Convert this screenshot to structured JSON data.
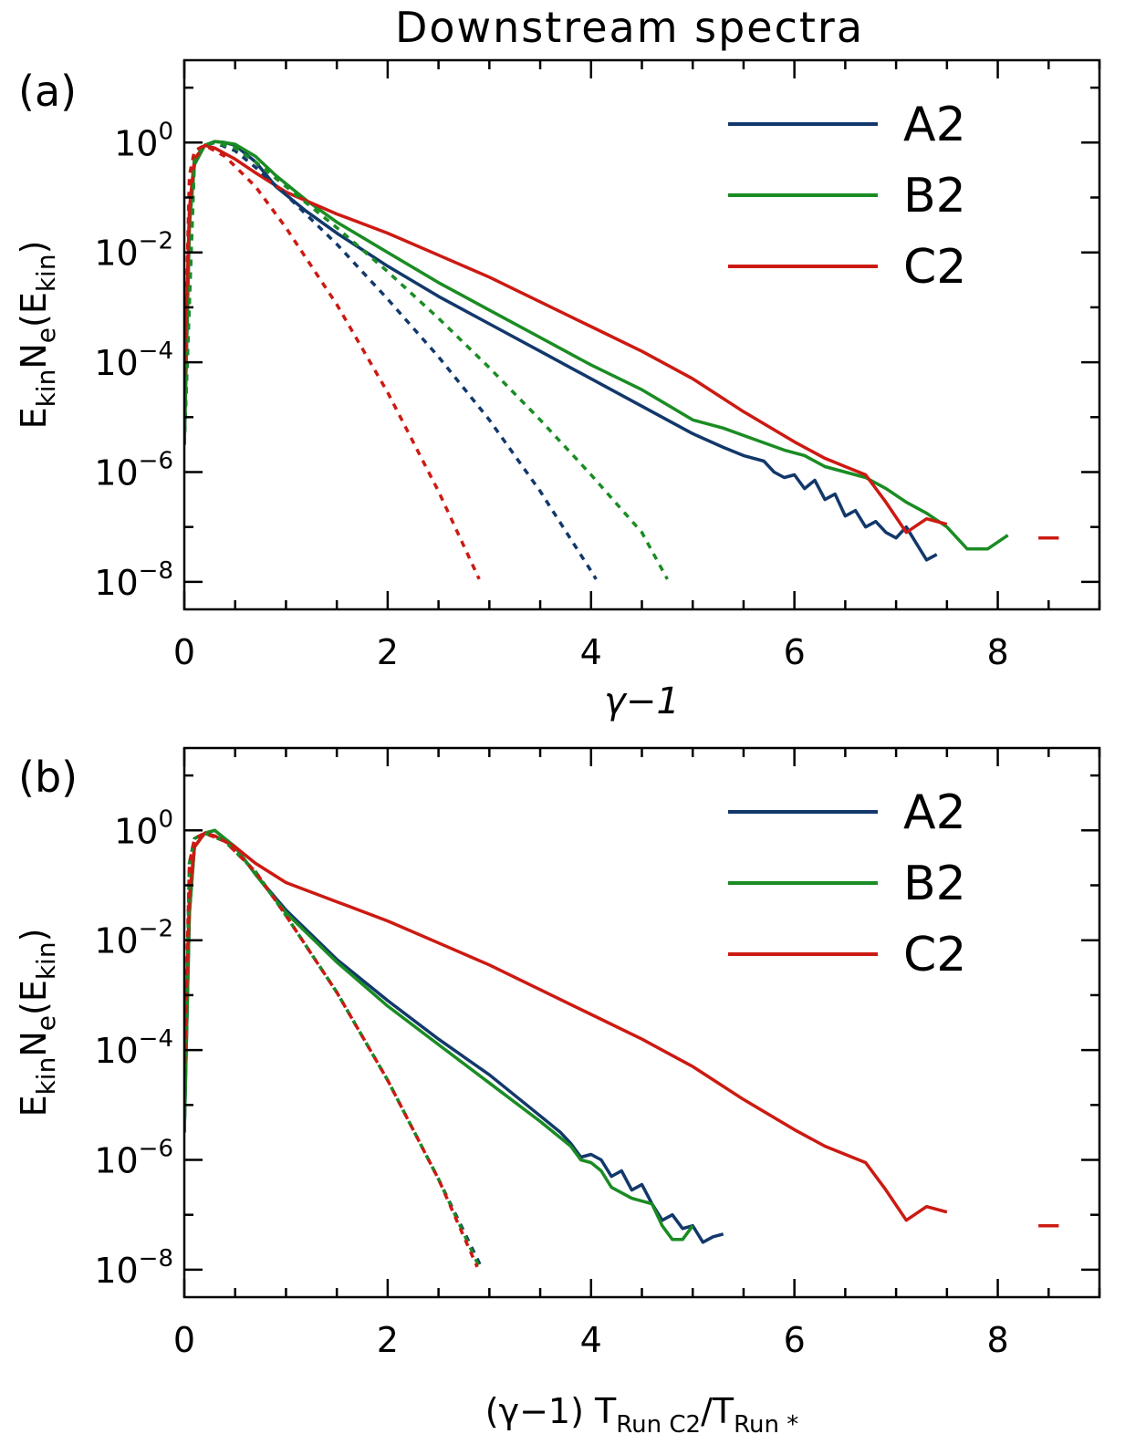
{
  "title": "Downstream spectra",
  "colors": {
    "A2": "#12386b",
    "B2": "#1a8c23",
    "C2": "#cc1a12"
  },
  "chart_data": [
    {
      "type": "line",
      "panel_label": "(a)",
      "xlabel": "γ−1",
      "ylabel": {
        "base": "E",
        "sub1": "kin",
        "mid": "N",
        "sub2": "e",
        "open": "(E",
        "sub3": "kin",
        "close": ")"
      },
      "xlim": [
        0,
        9
      ],
      "ylim": [
        -8.5,
        1.5
      ],
      "y_scale": "log10",
      "x_ticks": [
        0,
        2,
        4,
        6,
        8
      ],
      "y_ticks": [
        {
          "base": "10",
          "exp": "0"
        },
        {
          "base": "10",
          "exp": "−2"
        },
        {
          "base": "10",
          "exp": "−4"
        },
        {
          "base": "10",
          "exp": "−6"
        },
        {
          "base": "10",
          "exp": "−8"
        }
      ],
      "y_tick_values": [
        0,
        -2,
        -4,
        -6,
        -8
      ],
      "legend": [
        "A2",
        "B2",
        "C2"
      ],
      "legend_position": "top-right",
      "series": [
        {
          "name": "A2",
          "style": "solid",
          "x": [
            0,
            0.05,
            0.1,
            0.2,
            0.3,
            0.4,
            0.5,
            0.7,
            0.9,
            1.2,
            1.5,
            2,
            2.5,
            3,
            3.5,
            4,
            4.5,
            5,
            5.3,
            5.5,
            5.7,
            5.8,
            5.9,
            6,
            6.1,
            6.2,
            6.3,
            6.4,
            6.5,
            6.6,
            6.7,
            6.8,
            6.9,
            7,
            7.1,
            7.2,
            7.3,
            7.4
          ],
          "logy": [
            -5.5,
            -1.5,
            -0.4,
            -0.05,
            0.02,
            0.0,
            -0.05,
            -0.35,
            -0.8,
            -1.25,
            -1.65,
            -2.25,
            -2.8,
            -3.3,
            -3.8,
            -4.3,
            -4.8,
            -5.3,
            -5.55,
            -5.7,
            -5.8,
            -6.0,
            -6.1,
            -6.05,
            -6.3,
            -6.15,
            -6.5,
            -6.4,
            -6.8,
            -6.7,
            -7.0,
            -6.9,
            -7.1,
            -7.2,
            -7.0,
            -7.3,
            -7.6,
            -7.5
          ]
        },
        {
          "name": "B2",
          "style": "solid",
          "x": [
            0,
            0.05,
            0.1,
            0.2,
            0.3,
            0.4,
            0.5,
            0.7,
            0.9,
            1.2,
            1.5,
            2,
            2.5,
            3,
            3.5,
            4,
            4.5,
            5,
            5.3,
            5.6,
            5.9,
            6.1,
            6.3,
            6.5,
            6.7,
            6.9,
            7.1,
            7.3,
            7.5,
            7.7,
            7.9,
            8.1
          ],
          "logy": [
            -5.5,
            -1.5,
            -0.4,
            -0.05,
            0.02,
            0.0,
            -0.03,
            -0.25,
            -0.6,
            -1.05,
            -1.45,
            -2.0,
            -2.55,
            -3.05,
            -3.55,
            -4.05,
            -4.5,
            -5.05,
            -5.2,
            -5.4,
            -5.6,
            -5.7,
            -5.9,
            -6.0,
            -6.1,
            -6.3,
            -6.55,
            -6.75,
            -7.0,
            -7.4,
            -7.4,
            -7.15
          ]
        },
        {
          "name": "C2",
          "style": "solid",
          "x": [
            0,
            0.05,
            0.1,
            0.2,
            0.3,
            0.5,
            0.7,
            1.0,
            1.5,
            2.0,
            2.5,
            3.0,
            3.5,
            4.0,
            4.5,
            5.0,
            5.5,
            6.0,
            6.3,
            6.5,
            6.7,
            6.9,
            7.1,
            7.3,
            7.5
          ],
          "logy": [
            -4.5,
            -1.2,
            -0.3,
            -0.05,
            -0.1,
            -0.3,
            -0.55,
            -0.9,
            -1.3,
            -1.65,
            -2.05,
            -2.45,
            -2.9,
            -3.35,
            -3.8,
            -4.3,
            -4.9,
            -5.45,
            -5.75,
            -5.9,
            -6.05,
            -6.55,
            -7.1,
            -6.85,
            -6.95
          ]
        },
        {
          "name": "C2",
          "style": "solid",
          "x": [
            8.4,
            8.6
          ],
          "logy": [
            -7.2,
            -7.2
          ]
        },
        {
          "name": "A2",
          "style": "dotted",
          "x": [
            0,
            0.1,
            0.2,
            0.3,
            0.5,
            0.7,
            1.0,
            1.5,
            2,
            2.5,
            3,
            3.5,
            4,
            4.05
          ],
          "logy": [
            -5.5,
            -0.3,
            -0.05,
            0.0,
            -0.15,
            -0.45,
            -0.95,
            -1.85,
            -2.85,
            -3.9,
            -5.05,
            -6.35,
            -7.8,
            -7.95
          ]
        },
        {
          "name": "B2",
          "style": "dotted",
          "x": [
            0,
            0.1,
            0.2,
            0.3,
            0.5,
            0.7,
            1.0,
            1.5,
            2,
            2.5,
            3,
            3.5,
            4,
            4.5,
            4.75
          ],
          "logy": [
            -5.5,
            -0.3,
            -0.05,
            0.0,
            -0.1,
            -0.35,
            -0.8,
            -1.55,
            -2.35,
            -3.2,
            -4.1,
            -5.05,
            -6.05,
            -7.1,
            -7.95
          ]
        },
        {
          "name": "C2",
          "style": "dotted",
          "x": [
            0,
            0.05,
            0.1,
            0.2,
            0.4,
            0.7,
            1.0,
            1.5,
            2,
            2.5,
            2.9
          ],
          "logy": [
            -4.5,
            -0.6,
            -0.15,
            -0.05,
            -0.25,
            -0.8,
            -1.55,
            -2.95,
            -4.55,
            -6.35,
            -7.95
          ]
        }
      ]
    },
    {
      "type": "line",
      "panel_label": "(b)",
      "xlabel": "(γ−1)  T",
      "xlabel_sub1": "Run C2",
      "xlabel_mid": "/T",
      "xlabel_sub2": "Run *",
      "ylabel": {
        "base": "E",
        "sub1": "kin",
        "mid": "N",
        "sub2": "e",
        "open": "(E",
        "sub3": "kin",
        "close": ")"
      },
      "xlim": [
        0,
        9
      ],
      "ylim": [
        -8.5,
        1.5
      ],
      "y_scale": "log10",
      "x_ticks": [
        0,
        2,
        4,
        6,
        8
      ],
      "y_ticks": [
        {
          "base": "10",
          "exp": "0"
        },
        {
          "base": "10",
          "exp": "−2"
        },
        {
          "base": "10",
          "exp": "−4"
        },
        {
          "base": "10",
          "exp": "−6"
        },
        {
          "base": "10",
          "exp": "−8"
        }
      ],
      "y_tick_values": [
        0,
        -2,
        -4,
        -6,
        -8
      ],
      "legend": [
        "A2",
        "B2",
        "C2"
      ],
      "legend_position": "top-right",
      "series": [
        {
          "name": "A2",
          "style": "solid",
          "x": [
            0,
            0.05,
            0.1,
            0.2,
            0.3,
            0.5,
            0.7,
            1.0,
            1.5,
            2,
            2.5,
            3,
            3.5,
            3.7,
            3.8,
            3.9,
            4.0,
            4.1,
            4.2,
            4.3,
            4.4,
            4.5,
            4.6,
            4.7,
            4.8,
            4.9,
            5.0,
            5.1,
            5.2,
            5.3
          ],
          "logy": [
            -5.5,
            -1.5,
            -0.3,
            -0.05,
            0.0,
            -0.3,
            -0.8,
            -1.45,
            -2.35,
            -3.1,
            -3.8,
            -4.45,
            -5.2,
            -5.5,
            -5.7,
            -5.95,
            -5.9,
            -6.0,
            -6.3,
            -6.2,
            -6.55,
            -6.45,
            -6.8,
            -7.1,
            -7.0,
            -7.25,
            -7.2,
            -7.5,
            -7.4,
            -7.35
          ]
        },
        {
          "name": "B2",
          "style": "solid",
          "x": [
            0,
            0.05,
            0.1,
            0.2,
            0.3,
            0.5,
            0.7,
            1.0,
            1.5,
            2,
            2.5,
            3,
            3.5,
            3.7,
            3.8,
            3.9,
            4.0,
            4.1,
            4.2,
            4.4,
            4.6,
            4.7,
            4.8,
            4.9,
            5.0
          ],
          "logy": [
            -5.5,
            -1.5,
            -0.3,
            -0.05,
            0.0,
            -0.3,
            -0.8,
            -1.5,
            -2.4,
            -3.2,
            -3.9,
            -4.6,
            -5.3,
            -5.6,
            -5.75,
            -6.0,
            -6.05,
            -6.2,
            -6.5,
            -6.7,
            -6.8,
            -7.2,
            -7.45,
            -7.45,
            -7.2
          ]
        },
        {
          "name": "C2",
          "style": "solid",
          "x": [
            0,
            0.05,
            0.1,
            0.2,
            0.3,
            0.5,
            0.7,
            1.0,
            1.5,
            2.0,
            2.5,
            3.0,
            3.5,
            4.0,
            4.5,
            5.0,
            5.5,
            6.0,
            6.3,
            6.5,
            6.7,
            6.9,
            7.1,
            7.3,
            7.5
          ],
          "logy": [
            -4.5,
            -1.2,
            -0.3,
            -0.05,
            -0.1,
            -0.3,
            -0.6,
            -0.95,
            -1.3,
            -1.65,
            -2.05,
            -2.45,
            -2.9,
            -3.35,
            -3.8,
            -4.3,
            -4.9,
            -5.45,
            -5.75,
            -5.9,
            -6.05,
            -6.55,
            -7.1,
            -6.85,
            -6.95
          ]
        },
        {
          "name": "C2",
          "style": "solid",
          "x": [
            8.4,
            8.6
          ],
          "logy": [
            -7.2,
            -7.2
          ]
        },
        {
          "name": "A2",
          "style": "dotted",
          "x": [
            0,
            0.05,
            0.1,
            0.2,
            0.4,
            0.7,
            1.0,
            1.5,
            2,
            2.5,
            2.92
          ],
          "logy": [
            -5.5,
            -0.6,
            -0.15,
            -0.05,
            -0.2,
            -0.75,
            -1.55,
            -2.95,
            -4.55,
            -6.35,
            -7.95
          ]
        },
        {
          "name": "B2",
          "style": "dotted",
          "x": [
            0,
            0.05,
            0.1,
            0.2,
            0.4,
            0.7,
            1.0,
            1.5,
            2,
            2.5,
            2.9
          ],
          "logy": [
            -5.5,
            -0.6,
            -0.15,
            -0.05,
            -0.2,
            -0.75,
            -1.55,
            -2.95,
            -4.55,
            -6.35,
            -7.95
          ]
        },
        {
          "name": "C2",
          "style": "dotted",
          "x": [
            0,
            0.05,
            0.1,
            0.2,
            0.4,
            0.7,
            1.0,
            1.5,
            2,
            2.5,
            2.88
          ],
          "logy": [
            -4.5,
            -0.6,
            -0.15,
            -0.05,
            -0.2,
            -0.75,
            -1.55,
            -2.95,
            -4.55,
            -6.35,
            -7.95
          ]
        }
      ]
    }
  ]
}
